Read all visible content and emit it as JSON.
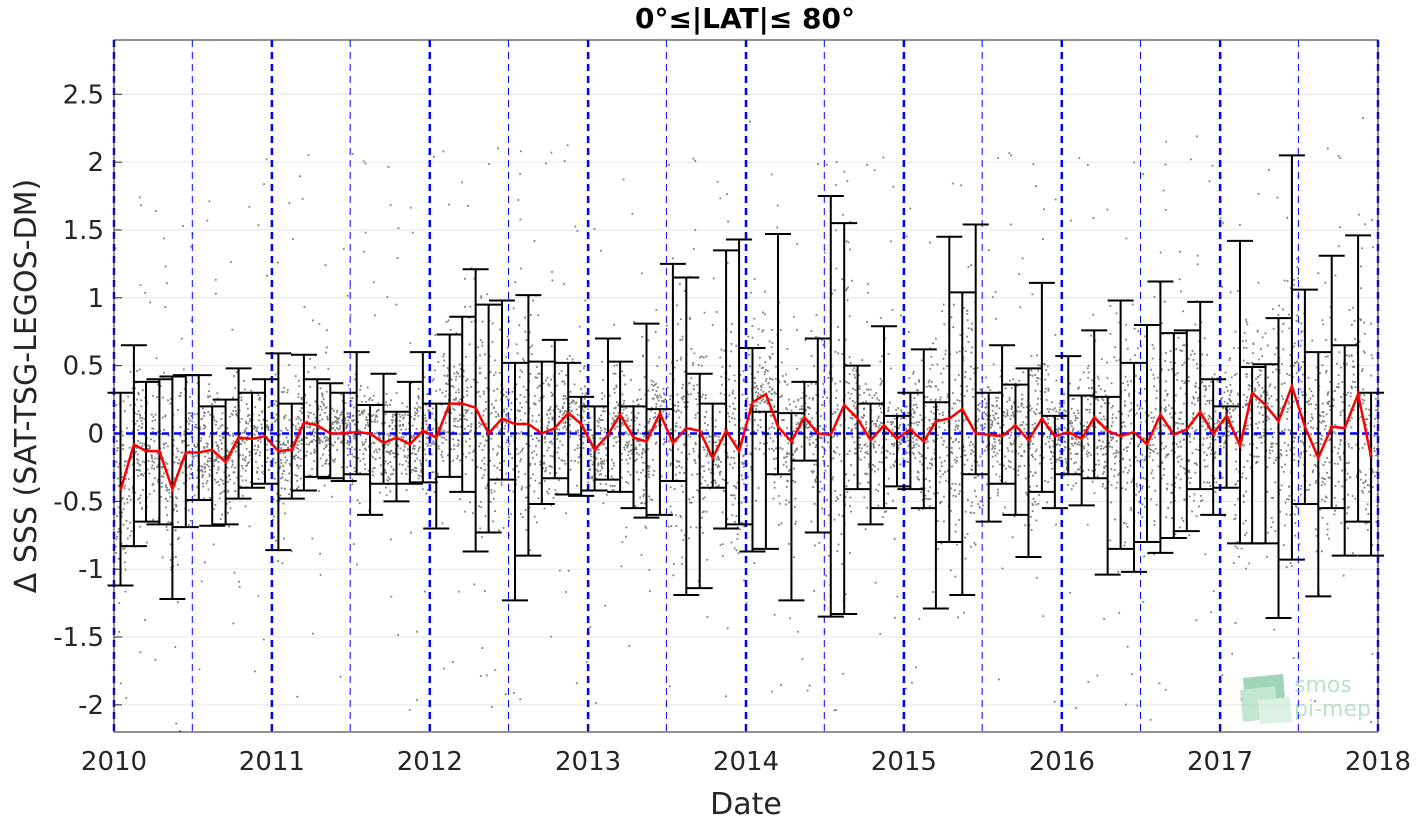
{
  "chart_data": {
    "type": "scatter",
    "title": "0°≤|LAT|≤ 80°",
    "xlabel": "Date",
    "ylabel": "Δ SSS (SAT-TSG-LEGOS-DM)",
    "xlim": [
      "2010-01-01",
      "2018-01-01"
    ],
    "ylim": [
      -2.2,
      2.9
    ],
    "x_tick_labels": [
      "2010",
      "2011",
      "2012",
      "2013",
      "2014",
      "2015",
      "2016",
      "2017",
      "2018"
    ],
    "y_ticks": [
      -2,
      -1.5,
      -1,
      -0.5,
      0,
      0.5,
      1,
      1.5,
      2,
      2.5
    ],
    "y_tick_labels": [
      "-2",
      "-1.5",
      "-1",
      "-0.5",
      "0",
      "0.5",
      "1",
      "1.5",
      "2",
      "2.5"
    ],
    "grid": true,
    "reference_lines": {
      "zero_line": 0,
      "year_boundaries": [
        "2010-01-01",
        "2011-01-01",
        "2012-01-01",
        "2013-01-01",
        "2014-01-01",
        "2015-01-01",
        "2016-01-01",
        "2017-01-01",
        "2018-01-01"
      ],
      "mid_year_lines": [
        "2010-07-01",
        "2011-07-01",
        "2012-07-01",
        "2013-07-01",
        "2014-07-01",
        "2015-07-01",
        "2016-07-01",
        "2017-07-01"
      ]
    },
    "series": [
      {
        "kind": "monthly_median_line_with_error_bars",
        "x": [
          "2010-01",
          "2010-02",
          "2010-03",
          "2010-04",
          "2010-05",
          "2010-06",
          "2010-07",
          "2010-08",
          "2010-09",
          "2010-10",
          "2010-11",
          "2010-12",
          "2011-01",
          "2011-02",
          "2011-03",
          "2011-04",
          "2011-05",
          "2011-06",
          "2011-07",
          "2011-08",
          "2011-09",
          "2011-10",
          "2011-11",
          "2011-12",
          "2012-01",
          "2012-02",
          "2012-03",
          "2012-04",
          "2012-05",
          "2012-06",
          "2012-07",
          "2012-08",
          "2012-09",
          "2012-10",
          "2012-11",
          "2012-12",
          "2013-01",
          "2013-02",
          "2013-03",
          "2013-04",
          "2013-05",
          "2013-06",
          "2013-07",
          "2013-08",
          "2013-09",
          "2013-10",
          "2013-11",
          "2013-12",
          "2014-01",
          "2014-02",
          "2014-03",
          "2014-04",
          "2014-05",
          "2014-06",
          "2014-07",
          "2014-08",
          "2014-09",
          "2014-10",
          "2014-11",
          "2014-12",
          "2015-01",
          "2015-02",
          "2015-03",
          "2015-04",
          "2015-05",
          "2015-06",
          "2015-07",
          "2015-08",
          "2015-09",
          "2015-10",
          "2015-11",
          "2015-12",
          "2016-01",
          "2016-02",
          "2016-03",
          "2016-04",
          "2016-05",
          "2016-06",
          "2016-07",
          "2016-08",
          "2016-09",
          "2016-10",
          "2016-11",
          "2016-12",
          "2017-01",
          "2017-02",
          "2017-03",
          "2017-04",
          "2017-05",
          "2017-06",
          "2017-07",
          "2017-08",
          "2017-09",
          "2017-10",
          "2017-11",
          "2017-12"
        ],
        "y": [
          -0.42,
          -0.08,
          -0.13,
          -0.13,
          -0.41,
          -0.14,
          -0.14,
          -0.12,
          -0.21,
          -0.03,
          -0.04,
          -0.02,
          -0.13,
          -0.12,
          0.08,
          0.06,
          0.0,
          0.0,
          0.01,
          0.0,
          -0.07,
          -0.03,
          -0.08,
          0.02,
          -0.03,
          0.22,
          0.22,
          0.19,
          0.0,
          0.11,
          0.07,
          0.07,
          0.0,
          0.04,
          0.15,
          0.07,
          -0.12,
          -0.01,
          0.14,
          -0.03,
          -0.06,
          0.15,
          -0.07,
          0.04,
          0.02,
          -0.18,
          0.02,
          -0.13,
          0.23,
          0.29,
          0.05,
          -0.06,
          0.12,
          0.0,
          -0.01,
          0.21,
          0.11,
          -0.05,
          0.06,
          -0.04,
          0.03,
          -0.06,
          0.09,
          0.11,
          0.18,
          0.0,
          -0.01,
          -0.02,
          0.06,
          -0.05,
          0.11,
          -0.02,
          0.01,
          -0.04,
          0.12,
          0.02,
          -0.02,
          0.01,
          -0.08,
          0.14,
          -0.01,
          0.03,
          0.16,
          0.0,
          0.13,
          -0.09,
          0.3,
          0.21,
          0.09,
          0.35,
          0.05,
          -0.18,
          0.05,
          0.04,
          0.29,
          -0.17
        ],
        "upper": [
          0.3,
          0.65,
          0.38,
          0.4,
          0.42,
          0.43,
          0.43,
          0.2,
          0.25,
          0.48,
          0.3,
          0.4,
          0.59,
          0.22,
          0.58,
          0.4,
          0.37,
          0.3,
          0.6,
          0.21,
          0.44,
          0.16,
          0.38,
          0.6,
          0.22,
          0.73,
          0.86,
          1.21,
          0.95,
          0.98,
          0.52,
          1.02,
          0.53,
          0.69,
          0.52,
          0.27,
          0.2,
          0.7,
          0.53,
          0.2,
          0.81,
          0.18,
          1.25,
          1.15,
          0.44,
          0.22,
          1.35,
          1.43,
          0.63,
          0.16,
          1.47,
          0.15,
          0.38,
          0.7,
          1.75,
          1.55,
          0.5,
          0.22,
          0.79,
          0.13,
          0.3,
          0.62,
          0.23,
          1.45,
          1.04,
          1.54,
          0.3,
          0.65,
          0.36,
          0.48,
          1.11,
          0.13,
          0.57,
          0.28,
          0.76,
          0.27,
          0.98,
          0.52,
          0.8,
          1.12,
          0.74,
          0.76,
          0.97,
          0.4,
          0.2,
          1.42,
          0.49,
          0.51,
          0.85,
          2.05,
          1.06,
          0.6,
          1.31,
          0.65,
          1.46,
          0.3
        ],
        "lower": [
          -1.12,
          -0.83,
          -0.65,
          -0.67,
          -1.22,
          -0.69,
          -0.49,
          -0.68,
          -0.67,
          -0.48,
          -0.4,
          -0.37,
          -0.86,
          -0.48,
          -0.42,
          -0.32,
          -0.33,
          -0.35,
          -0.3,
          -0.6,
          -0.37,
          -0.5,
          -0.37,
          -0.36,
          -0.7,
          -0.32,
          -0.43,
          -0.87,
          -0.73,
          -0.34,
          -1.23,
          -0.9,
          -0.52,
          -0.33,
          -0.45,
          -0.46,
          -0.42,
          -0.34,
          -0.43,
          -0.55,
          -0.62,
          -0.6,
          -0.35,
          -1.19,
          -1.14,
          -0.4,
          -0.7,
          -0.67,
          -0.87,
          -0.85,
          -0.3,
          -1.23,
          -0.2,
          -0.73,
          -1.35,
          -1.33,
          -0.41,
          -0.67,
          -0.55,
          -0.39,
          -0.41,
          -0.55,
          -1.29,
          -0.8,
          -1.19,
          -0.3,
          -0.65,
          -0.37,
          -0.6,
          -0.91,
          -0.43,
          -0.55,
          -0.3,
          -0.53,
          -0.33,
          -1.04,
          -0.85,
          -1.02,
          -0.8,
          -0.88,
          -0.77,
          -0.72,
          -0.41,
          -0.6,
          -0.4,
          -0.81,
          -0.81,
          -0.81,
          -1.36,
          -0.93,
          -0.52,
          -1.2,
          -0.55,
          -0.9,
          -0.65,
          -0.9
        ]
      },
      {
        "kind": "individual_match_points",
        "note": "dense gray scatter cloud of individual differences, mostly within about -1 to 1"
      }
    ],
    "colors": {
      "scatter": "#808080",
      "median_line": "#ff0000",
      "error_bars": "#000000",
      "reference_lines": "#0000ff",
      "grid": "#e6e6e6"
    },
    "watermark_text": [
      "smos",
      "pi-mep"
    ]
  }
}
